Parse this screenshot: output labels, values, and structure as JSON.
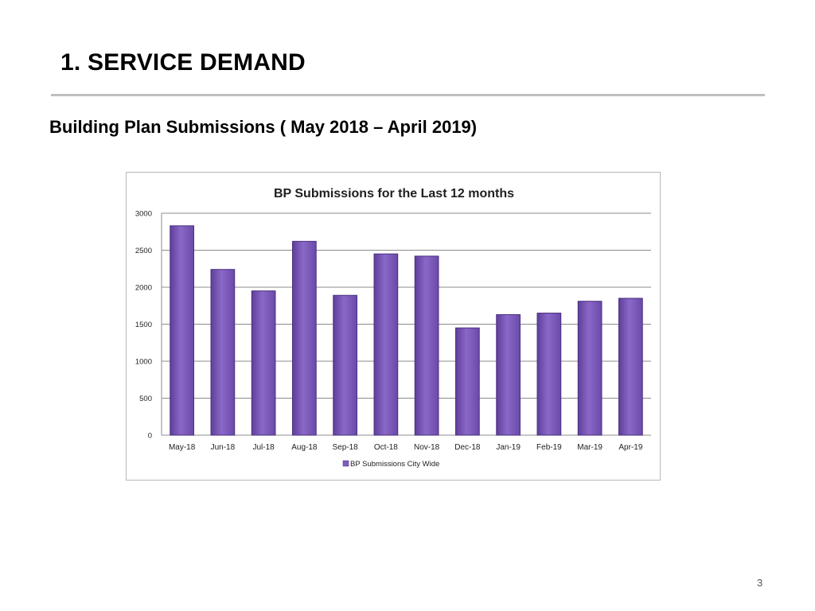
{
  "slide": {
    "title": "1. SERVICE DEMAND",
    "subtitle": "Building Plan Submissions ( May 2018 – April 2019)",
    "page_number": "3"
  },
  "colors": {
    "bar_fill": "#7f5dbd",
    "bar_stroke": "#4b2f7f",
    "gridline": "#8c8c8c",
    "title_rule": "#bfbfbf"
  },
  "chart_data": {
    "type": "bar",
    "title": "BP Submissions for the Last 12 months",
    "xlabel": "",
    "ylabel": "",
    "categories": [
      "May-18",
      "Jun-18",
      "Jul-18",
      "Aug-18",
      "Sep-18",
      "Oct-18",
      "Nov-18",
      "Dec-18",
      "Jan-19",
      "Feb-19",
      "Mar-19",
      "Apr-19"
    ],
    "series": [
      {
        "name": "BP Submissions City Wide",
        "values": [
          2830,
          2240,
          1950,
          2620,
          1890,
          2450,
          2420,
          1450,
          1630,
          1650,
          1810,
          1850
        ]
      }
    ],
    "ylim": [
      0,
      3000
    ],
    "yticks": [
      0,
      500,
      1000,
      1500,
      2000,
      2500,
      3000
    ],
    "grid": true,
    "legend": "bottom-center"
  }
}
